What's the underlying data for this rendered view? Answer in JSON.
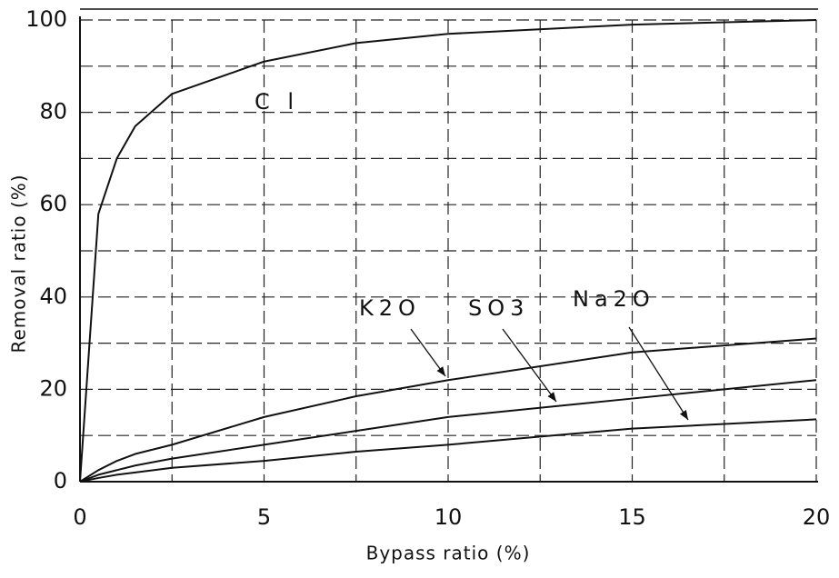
{
  "chart_data": {
    "type": "line",
    "x_label": "Bypass ratio (%)",
    "y_label": "Removal ratio (%)",
    "x": [
      0,
      0.5,
      1,
      1.5,
      2.5,
      5,
      7.5,
      10,
      15,
      20
    ],
    "series": [
      {
        "name": "C l",
        "color": "#111111",
        "values": [
          0,
          58,
          70,
          77,
          84,
          91,
          95,
          97,
          99,
          100
        ]
      },
      {
        "name": "K2O",
        "color": "#111111",
        "values": [
          0,
          2.5,
          4.5,
          6,
          8,
          14,
          18.5,
          22,
          28,
          31
        ]
      },
      {
        "name": "SO3",
        "color": "#111111",
        "values": [
          0,
          1.5,
          2.5,
          3.5,
          5,
          8,
          11,
          14,
          18,
          22
        ]
      },
      {
        "name": "Na2O",
        "color": "#111111",
        "values": [
          0,
          0.8,
          1.5,
          2,
          3,
          4.5,
          6.5,
          8,
          11.5,
          13.5
        ]
      }
    ],
    "xlim": [
      0,
      20
    ],
    "ylim": [
      0,
      100
    ],
    "xticks": [
      0,
      5,
      10,
      15,
      20
    ],
    "yticks": [
      0,
      20,
      40,
      60,
      80,
      100
    ],
    "xminor": [
      2.5,
      7.5,
      12.5,
      17.5
    ],
    "yminor": [
      10,
      30,
      50,
      70,
      90
    ],
    "grid": true
  }
}
